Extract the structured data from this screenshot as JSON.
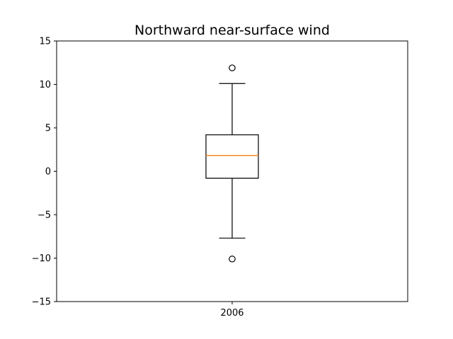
{
  "chart_data": {
    "type": "box",
    "title": "Northward near-surface wind",
    "xlabel": "",
    "ylabel": "",
    "categories": [
      "2006"
    ],
    "ylim": [
      -15,
      15
    ],
    "yticks": [
      -15,
      -10,
      -5,
      0,
      5,
      10,
      15
    ],
    "ytick_labels": [
      "−15",
      "−10",
      "−5",
      "0",
      "5",
      "10",
      "15"
    ],
    "grid": false,
    "boxes": [
      {
        "category": "2006",
        "whisker_low": -7.7,
        "q1": -0.8,
        "median": 1.8,
        "q3": 4.2,
        "whisker_high": 10.1,
        "outliers": [
          11.9,
          -10.1
        ]
      }
    ],
    "colors": {
      "box": "#000000",
      "median": "#ff7f0e",
      "axes": "#000000"
    }
  }
}
